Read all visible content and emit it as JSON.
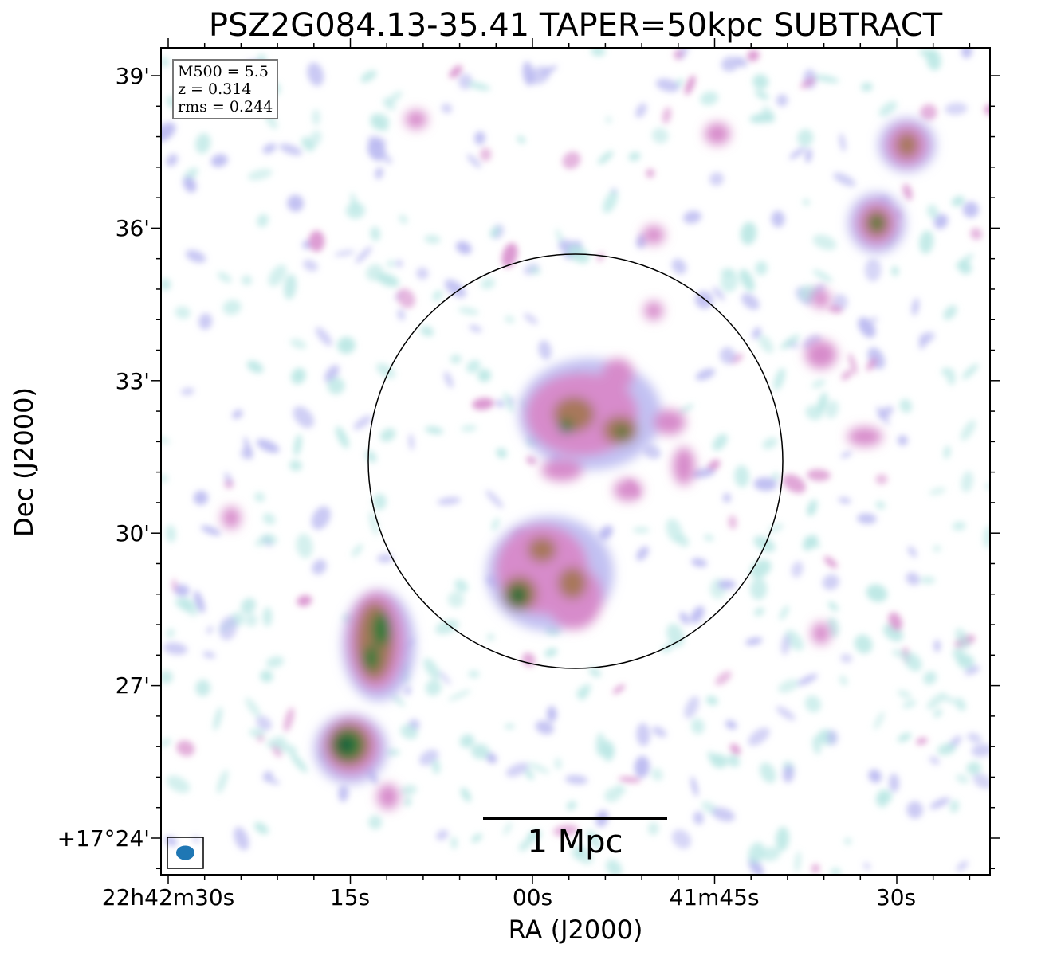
{
  "title": "PSZ2G084.13-35.41 TAPER=50kpc SUBTRACT",
  "info": {
    "m500": "M500 = 5.5",
    "z": "z = 0.314",
    "rms": "rms = 0.244"
  },
  "axes": {
    "xlabel": "RA (J2000)",
    "ylabel": "Dec (J2000)",
    "xticks": [
      "22h42m30s",
      "15s",
      "00s",
      "41m45s",
      "30s"
    ],
    "yticks": [
      "39'",
      "36'",
      "33'",
      "30'",
      "27'",
      "+17°24'"
    ]
  },
  "scalebar": {
    "label": "1 Mpc"
  },
  "colors": {
    "frame": "#000000",
    "beam": "#1f77b4",
    "noise_light": "#b7e6e3",
    "noise_blue": "#b7b6f0",
    "emission_pink": "#d78bcb",
    "emission_brown": "#a8785b",
    "emission_green": "#2f7a3b",
    "emission_dark": "#1d5a3c"
  }
}
